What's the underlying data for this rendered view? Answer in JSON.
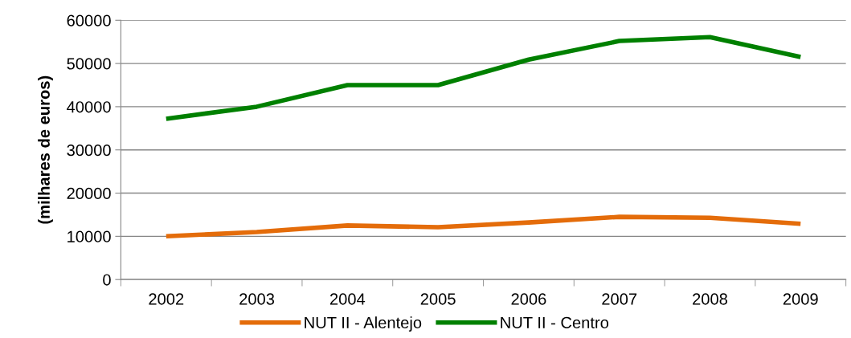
{
  "chart_data": {
    "type": "line",
    "ylabel": "(milhares de euros)",
    "categories": [
      "2002",
      "2003",
      "2004",
      "2005",
      "2006",
      "2007",
      "2008",
      "2009"
    ],
    "series": [
      {
        "name": "NUT II - Alentejo",
        "color": "#e46c0a",
        "values": [
          10000,
          11000,
          12500,
          12100,
          13200,
          14500,
          14300,
          12900
        ]
      },
      {
        "name": "NUT II - Centro",
        "color": "#008000",
        "values": [
          37200,
          40000,
          45000,
          45000,
          50900,
          55200,
          56100,
          51500
        ]
      }
    ],
    "ylim": [
      0,
      60000
    ],
    "yticks": [
      0,
      10000,
      20000,
      30000,
      40000,
      50000,
      60000
    ],
    "grid": "y",
    "legend": "bottom",
    "marker": "none",
    "line_style": "solid"
  }
}
